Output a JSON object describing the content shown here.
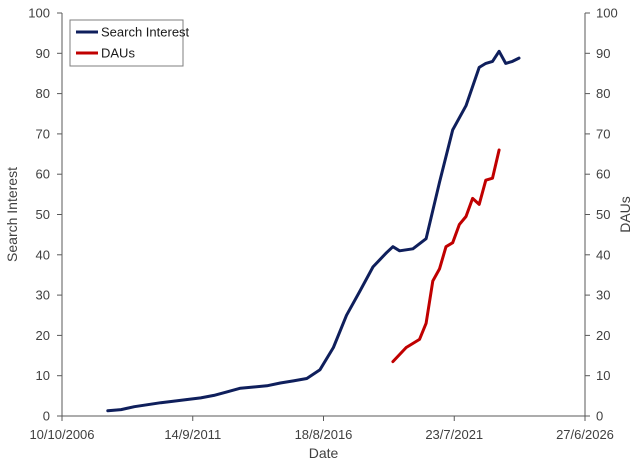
{
  "chart_data": {
    "type": "line",
    "xlabel": "Date",
    "ylabel_left": "Search Interest",
    "ylabel_right": "DAUs",
    "x_ticks": [
      "10/10/2006",
      "14/9/2011",
      "18/8/2016",
      "23/7/2021",
      "27/6/2026"
    ],
    "xlim": [
      "2006-10-10",
      "2026-06-27"
    ],
    "ylim_left": [
      0,
      100
    ],
    "ylim_right": [
      0,
      100
    ],
    "y_ticks_left": [
      0,
      10,
      20,
      30,
      40,
      50,
      60,
      70,
      80,
      90,
      100
    ],
    "y_ticks_right": [
      0,
      10,
      20,
      30,
      40,
      50,
      60,
      70,
      80,
      90,
      100
    ],
    "grid": false,
    "legend_position": "top-left",
    "series": [
      {
        "name": "Search Interest",
        "axis": "left",
        "color": "#0f1f5c",
        "points": [
          [
            "2008-07-01",
            1.3
          ],
          [
            "2009-01-01",
            1.6
          ],
          [
            "2009-07-01",
            2.3
          ],
          [
            "2010-01-01",
            2.8
          ],
          [
            "2010-07-01",
            3.3
          ],
          [
            "2011-01-01",
            3.7
          ],
          [
            "2011-07-01",
            4.1
          ],
          [
            "2012-01-01",
            4.5
          ],
          [
            "2012-07-01",
            5.1
          ],
          [
            "2013-01-01",
            6.0
          ],
          [
            "2013-07-01",
            6.9
          ],
          [
            "2014-01-01",
            7.2
          ],
          [
            "2014-07-01",
            7.5
          ],
          [
            "2015-01-01",
            8.2
          ],
          [
            "2015-07-01",
            8.7
          ],
          [
            "2016-01-01",
            9.3
          ],
          [
            "2016-07-01",
            11.5
          ],
          [
            "2017-01-01",
            17.0
          ],
          [
            "2017-07-01",
            25.0
          ],
          [
            "2018-01-01",
            31.0
          ],
          [
            "2018-07-01",
            37.0
          ],
          [
            "2019-01-01",
            40.5
          ],
          [
            "2019-04-01",
            42.0
          ],
          [
            "2019-07-01",
            41.0
          ],
          [
            "2020-01-01",
            41.5
          ],
          [
            "2020-07-01",
            44.0
          ],
          [
            "2021-01-01",
            58.0
          ],
          [
            "2021-07-01",
            71.0
          ],
          [
            "2022-01-01",
            77.0
          ],
          [
            "2022-07-01",
            86.5
          ],
          [
            "2022-10-01",
            87.5
          ],
          [
            "2023-01-01",
            88.0
          ],
          [
            "2023-04-01",
            90.5
          ],
          [
            "2023-07-01",
            87.5
          ],
          [
            "2023-10-01",
            88.0
          ],
          [
            "2024-01-01",
            88.8
          ]
        ]
      },
      {
        "name": "DAUs",
        "axis": "right",
        "color": "#c00000",
        "points": [
          [
            "2019-04-01",
            13.5
          ],
          [
            "2019-10-01",
            17.0
          ],
          [
            "2020-04-01",
            19.0
          ],
          [
            "2020-07-01",
            23.0
          ],
          [
            "2020-10-01",
            33.5
          ],
          [
            "2021-01-01",
            36.5
          ],
          [
            "2021-04-01",
            42.0
          ],
          [
            "2021-07-01",
            43.0
          ],
          [
            "2021-10-01",
            47.5
          ],
          [
            "2022-01-01",
            49.5
          ],
          [
            "2022-04-01",
            54.0
          ],
          [
            "2022-07-01",
            52.5
          ],
          [
            "2022-10-01",
            58.5
          ],
          [
            "2023-01-01",
            59.0
          ],
          [
            "2023-04-01",
            66.0
          ]
        ]
      }
    ]
  }
}
